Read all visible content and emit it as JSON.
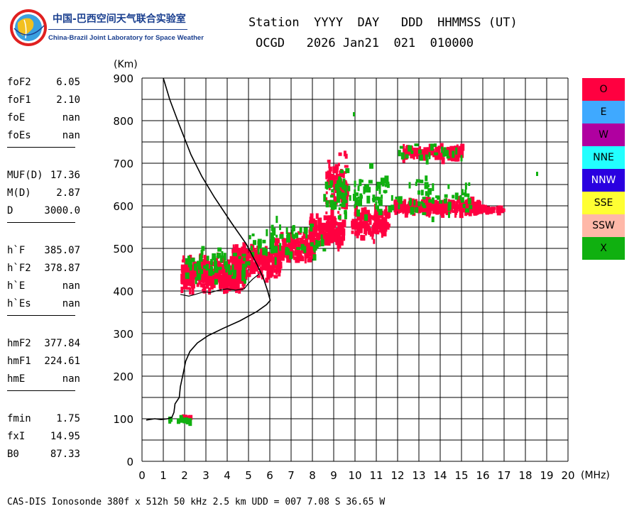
{
  "logo": {
    "cn_text": "中国-巴西空间天气联合实验室",
    "en_text": "China-Brazil Joint Laboratory for Space Weather"
  },
  "header": {
    "line1": "Station  YYYY  DAY   DDD  HHMMSS (UT)",
    "line2": "OCGD   2026 Jan21  021  010000"
  },
  "params": [
    {
      "name": "foF2",
      "value": "6.05"
    },
    {
      "name": "foF1",
      "value": "2.10"
    },
    {
      "name": "foE",
      "value": "nan"
    },
    {
      "name": "foEs",
      "value": "nan"
    },
    {
      "name": "MUF(D)",
      "value": "17.36"
    },
    {
      "name": "M(D)",
      "value": "2.87"
    },
    {
      "name": "D",
      "value": "3000.0"
    },
    {
      "name": "h`F",
      "value": "385.07"
    },
    {
      "name": "h`F2",
      "value": "378.87"
    },
    {
      "name": "h`E",
      "value": "nan"
    },
    {
      "name": "h`Es",
      "value": "nan"
    },
    {
      "name": "hmF2",
      "value": "377.84"
    },
    {
      "name": "hmF1",
      "value": "224.61"
    },
    {
      "name": "hmE",
      "value": "nan"
    },
    {
      "name": "fmin",
      "value": "1.75"
    },
    {
      "name": "fxI",
      "value": "14.95"
    },
    {
      "name": "B0",
      "value": "87.33"
    }
  ],
  "legend": [
    {
      "label": "O",
      "color": "#ff0040"
    },
    {
      "label": "E",
      "color": "#3fa9ff"
    },
    {
      "label": "W",
      "color": "#b000a0"
    },
    {
      "label": "NNE",
      "color": "#22ffff"
    },
    {
      "label": "NNW",
      "color": "#2a00e0"
    },
    {
      "label": "SSE",
      "color": "#ffff33"
    },
    {
      "label": "SSW",
      "color": "#ffb8a8"
    },
    {
      "label": "X",
      "color": "#10b010"
    }
  ],
  "footer": "CAS-DIS Ionosonde 380f x 512h 50 kHz 2.5 km UDD = 007 7.08 S 36.65 W",
  "chart_data": {
    "type": "scatter",
    "ylabel": "(Km)",
    "xlabel": "(MHz)",
    "xlim": [
      0,
      20
    ],
    "ylim": [
      0,
      900
    ],
    "x_ticks": [
      0,
      1,
      2,
      3,
      4,
      5,
      6,
      7,
      8,
      9,
      10,
      11,
      12,
      13,
      14,
      15,
      16,
      17,
      18,
      19,
      20
    ],
    "y_ticks": [
      0,
      100,
      200,
      300,
      400,
      500,
      600,
      700,
      800,
      900
    ],
    "grid": true,
    "series": [
      {
        "name": "O",
        "color": "#ff0040",
        "clusters": [
          {
            "x_range": [
              1.8,
              4.8
            ],
            "y_center": 440,
            "y_spread": 55,
            "density": 380
          },
          {
            "x_range": [
              4.2,
              6.5
            ],
            "y_center": 470,
            "y_spread": 50,
            "density": 220
          },
          {
            "x_range": [
              6.2,
              8.0
            ],
            "y_center": 500,
            "y_spread": 45,
            "density": 160
          },
          {
            "x_range": [
              7.8,
              9.4
            ],
            "y_center": 540,
            "y_spread": 50,
            "density": 170
          },
          {
            "x_range": [
              8.6,
              9.6
            ],
            "y_center": 650,
            "y_spread": 90,
            "density": 90
          },
          {
            "x_range": [
              9.8,
              11.5
            ],
            "y_center": 560,
            "y_spread": 50,
            "density": 140
          },
          {
            "x_range": [
              11.8,
              15.8
            ],
            "y_center": 597,
            "y_spread": 22,
            "density": 300
          },
          {
            "x_range": [
              15.5,
              17.0
            ],
            "y_center": 590,
            "y_spread": 8,
            "density": 30
          },
          {
            "x_range": [
              12.2,
              15.0
            ],
            "y_center": 725,
            "y_spread": 22,
            "density": 120
          },
          {
            "x_range": [
              1.8,
              2.3
            ],
            "y_center": 100,
            "y_spread": 6,
            "density": 10
          }
        ]
      },
      {
        "name": "X",
        "color": "#10b010",
        "clusters": [
          {
            "x_range": [
              2.0,
              5.0
            ],
            "y_center": 460,
            "y_spread": 60,
            "density": 70
          },
          {
            "x_range": [
              5.0,
              8.5
            ],
            "y_center": 520,
            "y_spread": 60,
            "density": 60
          },
          {
            "x_range": [
              8.5,
              11.5
            ],
            "y_center": 630,
            "y_spread": 80,
            "density": 90
          },
          {
            "x_range": [
              11.5,
              15.5
            ],
            "y_center": 620,
            "y_spread": 60,
            "density": 60
          },
          {
            "x_range": [
              12.0,
              15.0
            ],
            "y_center": 725,
            "y_spread": 30,
            "density": 25
          },
          {
            "x_range": [
              1.1,
              2.2
            ],
            "y_center": 96,
            "y_spread": 6,
            "density": 12
          }
        ],
        "points": [
          [
            9.9,
            815
          ],
          [
            18.5,
            675
          ]
        ]
      }
    ],
    "profile_line": {
      "name": "electron density profile",
      "points": [
        [
          0.2,
          97
        ],
        [
          0.6,
          100
        ],
        [
          0.9,
          98
        ],
        [
          1.2,
          100
        ],
        [
          1.4,
          103
        ],
        [
          1.5,
          115
        ],
        [
          1.55,
          135
        ],
        [
          1.75,
          150
        ],
        [
          1.8,
          175
        ],
        [
          1.95,
          210
        ],
        [
          2.05,
          235
        ],
        [
          2.25,
          258
        ],
        [
          2.6,
          278
        ],
        [
          3.1,
          295
        ],
        [
          3.8,
          312
        ],
        [
          4.6,
          330
        ],
        [
          5.4,
          352
        ],
        [
          5.85,
          368
        ],
        [
          6.02,
          378
        ],
        [
          5.9,
          400
        ],
        [
          5.7,
          430
        ],
        [
          5.4,
          462
        ],
        [
          4.9,
          510
        ],
        [
          4.2,
          560
        ],
        [
          3.4,
          620
        ],
        [
          2.8,
          670
        ],
        [
          2.3,
          720
        ],
        [
          1.75,
          790
        ],
        [
          1.3,
          850
        ],
        [
          1.0,
          900
        ]
      ]
    },
    "virtual_trace": {
      "name": "O trace",
      "points": [
        [
          1.8,
          392
        ],
        [
          2.2,
          388
        ],
        [
          2.5,
          392
        ],
        [
          2.9,
          398
        ],
        [
          3.2,
          396
        ],
        [
          3.6,
          402
        ],
        [
          4.0,
          405
        ],
        [
          4.4,
          402
        ],
        [
          4.8,
          405
        ],
        [
          5.0,
          418
        ],
        [
          5.2,
          428
        ],
        [
          5.5,
          440
        ]
      ]
    }
  }
}
